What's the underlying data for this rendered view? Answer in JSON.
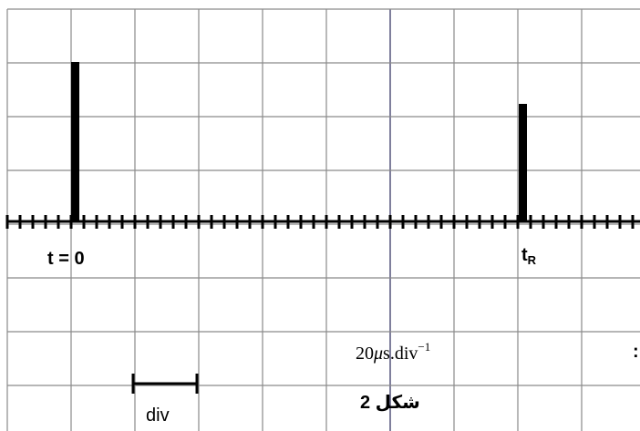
{
  "labels": {
    "t0": "t = 0",
    "tr_main": "t",
    "tr_sub": "R",
    "div": "div",
    "figure": "شكل 2",
    "sweep_label": "الكسح الأفقي :",
    "sweep_value": {
      "number": "20",
      "unit_prefix": "μ",
      "unit": "s.div",
      "exponent": "−1"
    }
  }
}
